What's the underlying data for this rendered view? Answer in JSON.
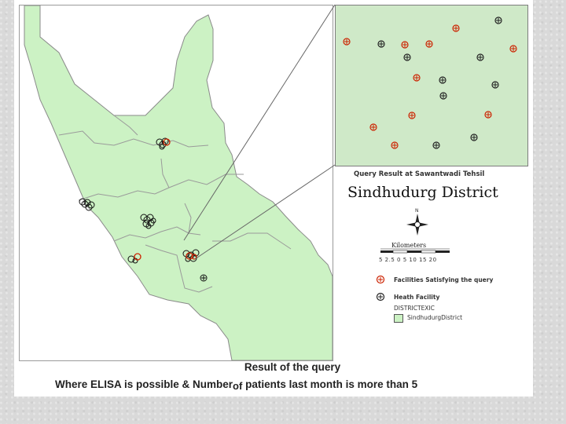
{
  "map": {
    "inset_title": "Query Result at Sawantwadi Tehsil",
    "district_title": "Sindhudurg District",
    "north_label": "N",
    "scale": {
      "unit_label": "Kilometers",
      "ticks": "5 2.5 0   5   10   15   20"
    },
    "legend": {
      "items": [
        {
          "label": "Facilities Satisfying the query",
          "symbol": "red-cross-circle-icon",
          "color": "#cc2200"
        },
        {
          "label": "Heath Facility",
          "symbol": "black-cross-circle-icon",
          "color": "#222222"
        }
      ],
      "districts_header": "DISTRICTEXIC",
      "district_item": "SindhudurgDistrict",
      "district_fill": "#ccf2c4"
    },
    "colors": {
      "land": "#ccf2c4",
      "inset_bg": "#cfe9c8",
      "satisfying": "#cc2200",
      "facility": "#222222"
    }
  },
  "caption": {
    "line1": "Result of the query",
    "line2_part1": "Where ELISA is possible  & Number",
    "line2_of": "of",
    "line2_part2": " patients last month is more than 5"
  }
}
